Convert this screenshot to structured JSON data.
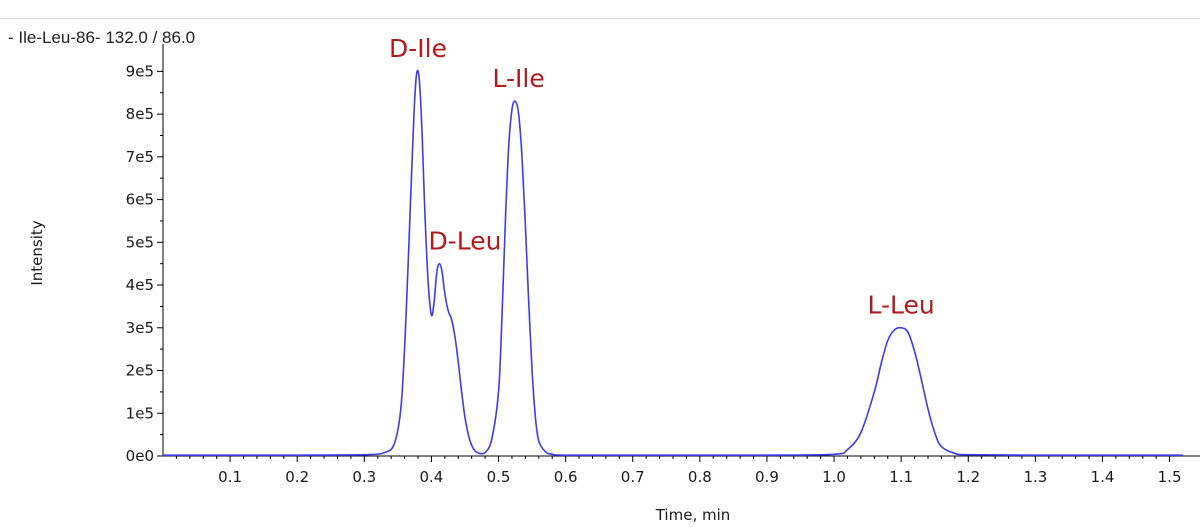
{
  "header": {
    "trace_title": "- Ile-Leu-86- 132.0 / 86.0"
  },
  "chart_data": {
    "type": "line",
    "title": "- Ile-Leu-86- 132.0 / 86.0",
    "xlabel": "Time, min",
    "ylabel": "Intensity",
    "xlim": [
      0.0,
      1.52
    ],
    "ylim": [
      0,
      950000
    ],
    "x_ticks": [
      0.1,
      0.2,
      0.3,
      0.4,
      0.5,
      0.6,
      0.7,
      0.8,
      0.9,
      1.0,
      1.1,
      1.2,
      1.3,
      1.4,
      1.5
    ],
    "x_tick_labels": [
      "0.1",
      "0.2",
      "0.3",
      "0.4",
      "0.5",
      "0.6",
      "0.7",
      "0.8",
      "0.9",
      "1.0",
      "1.1",
      "1.2",
      "1.3",
      "1.4",
      "1.5"
    ],
    "y_ticks": [
      0,
      100000,
      200000,
      300000,
      400000,
      500000,
      600000,
      700000,
      800000,
      900000
    ],
    "y_tick_labels": [
      "0e0",
      "1e5",
      "2e5",
      "3e5",
      "4e5",
      "5e5",
      "6e5",
      "7e5",
      "8e5",
      "9e5"
    ],
    "grid": false,
    "line_color": "#3b3bf0",
    "label_color": "#b31b1b",
    "series": [
      {
        "x": [
          0.0,
          0.1,
          0.2,
          0.3,
          0.33,
          0.345,
          0.355,
          0.362,
          0.368,
          0.374,
          0.378,
          0.382,
          0.386,
          0.39,
          0.395,
          0.4,
          0.404,
          0.408,
          0.412,
          0.416,
          0.42,
          0.425,
          0.43,
          0.435,
          0.44,
          0.445,
          0.45,
          0.455,
          0.46,
          0.465,
          0.47,
          0.48,
          0.49,
          0.5,
          0.505,
          0.51,
          0.515,
          0.52,
          0.525,
          0.53,
          0.535,
          0.54,
          0.545,
          0.55,
          0.555,
          0.56,
          0.57,
          0.58,
          0.6,
          0.7,
          0.8,
          0.9,
          1.0,
          1.02,
          1.04,
          1.06,
          1.07,
          1.08,
          1.09,
          1.1,
          1.11,
          1.12,
          1.13,
          1.14,
          1.15,
          1.16,
          1.18,
          1.2,
          1.3,
          1.4,
          1.52
        ],
        "y": [
          2000,
          2000,
          2000,
          3000,
          8000,
          30000,
          120000,
          320000,
          560000,
          800000,
          895000,
          880000,
          760000,
          580000,
          410000,
          330000,
          360000,
          430000,
          450000,
          430000,
          380000,
          340000,
          320000,
          280000,
          220000,
          150000,
          90000,
          50000,
          25000,
          12000,
          7000,
          8000,
          40000,
          150000,
          320000,
          540000,
          720000,
          810000,
          830000,
          800000,
          700000,
          540000,
          360000,
          200000,
          90000,
          35000,
          10000,
          4000,
          2000,
          2000,
          2000,
          2000,
          4000,
          15000,
          55000,
          150000,
          215000,
          270000,
          295000,
          300000,
          290000,
          245000,
          180000,
          110000,
          55000,
          22000,
          6000,
          3000,
          2000,
          2000,
          2000
        ]
      }
    ],
    "annotations": [
      {
        "text": "D-Ile",
        "x": 0.38,
        "y": 905000
      },
      {
        "text": "L-Ile",
        "x": 0.53,
        "y": 835000
      },
      {
        "text": "D-Leu",
        "x": 0.45,
        "y": 455000
      },
      {
        "text": "L-Leu",
        "x": 1.1,
        "y": 305000
      }
    ]
  }
}
